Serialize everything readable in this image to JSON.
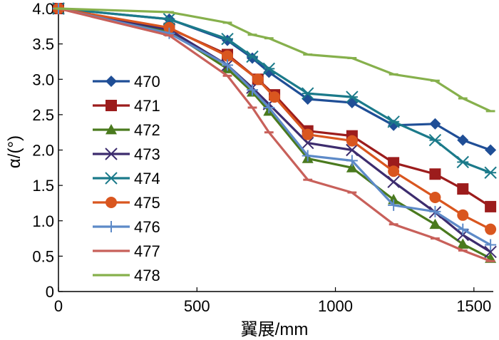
{
  "chart_data": {
    "type": "line",
    "title": "",
    "xlabel": "翼展/mm",
    "ylabel": "α/(°)",
    "xlim": [
      0,
      1570
    ],
    "ylim": [
      0,
      4.0
    ],
    "xticks": [
      0,
      500,
      1000,
      1500
    ],
    "yticks": [
      0,
      0.5,
      1.0,
      1.5,
      2.0,
      2.5,
      3.0,
      3.5,
      4.0
    ],
    "ytick_labels": [
      "0",
      "0.5",
      "1.0",
      "1.5",
      "2.0",
      "2.5",
      "3.0",
      "3.5",
      "4.0"
    ],
    "legend_position": "middle-left",
    "series": [
      {
        "name": "470",
        "color": "#1f4e96",
        "marker": "diamond",
        "x": [
          0,
          400,
          610,
          700,
          760,
          900,
          1060,
          1210,
          1360,
          1460,
          1560
        ],
        "y": [
          4.0,
          3.85,
          3.55,
          3.3,
          3.1,
          2.72,
          2.67,
          2.35,
          2.37,
          2.14,
          2.0
        ]
      },
      {
        "name": "471",
        "color": "#9c1c1c",
        "marker": "square",
        "x": [
          0,
          400,
          610,
          720,
          780,
          900,
          1060,
          1210,
          1360,
          1460,
          1560
        ],
        "y": [
          4.0,
          3.72,
          3.35,
          3.0,
          2.78,
          2.27,
          2.2,
          1.82,
          1.66,
          1.45,
          1.2
        ]
      },
      {
        "name": "472",
        "color": "#4a7a1e",
        "marker": "triangle",
        "x": [
          0,
          400,
          610,
          700,
          760,
          900,
          1060,
          1210,
          1360,
          1460,
          1560
        ],
        "y": [
          4.0,
          3.68,
          3.15,
          2.82,
          2.55,
          1.88,
          1.75,
          1.3,
          0.95,
          0.67,
          0.47
        ]
      },
      {
        "name": "473",
        "color": "#3d2c6e",
        "marker": "x",
        "x": [
          0,
          400,
          610,
          700,
          760,
          900,
          1060,
          1210,
          1360,
          1460,
          1560
        ],
        "y": [
          4.0,
          3.7,
          3.2,
          2.88,
          2.65,
          2.1,
          2.0,
          1.55,
          1.12,
          0.8,
          0.56
        ]
      },
      {
        "name": "474",
        "color": "#1b7a8a",
        "marker": "asterisk",
        "x": [
          0,
          400,
          610,
          700,
          760,
          900,
          1060,
          1210,
          1360,
          1460,
          1560
        ],
        "y": [
          4.0,
          3.85,
          3.57,
          3.32,
          3.15,
          2.8,
          2.75,
          2.4,
          2.14,
          1.83,
          1.68
        ]
      },
      {
        "name": "475",
        "color": "#d9561f",
        "marker": "circle",
        "x": [
          0,
          400,
          610,
          720,
          780,
          900,
          1060,
          1210,
          1360,
          1460,
          1560
        ],
        "y": [
          4.0,
          3.73,
          3.33,
          3.0,
          2.75,
          2.22,
          2.13,
          1.7,
          1.33,
          1.08,
          0.88
        ]
      },
      {
        "name": "476",
        "color": "#5d8ac8",
        "marker": "plus",
        "x": [
          0,
          400,
          610,
          700,
          760,
          900,
          1060,
          1210,
          1360,
          1460,
          1560
        ],
        "y": [
          4.0,
          3.65,
          3.2,
          2.85,
          2.6,
          1.92,
          1.85,
          1.22,
          1.13,
          0.88,
          0.66
        ]
      },
      {
        "name": "477",
        "color": "#c8605a",
        "marker": "dash",
        "x": [
          0,
          400,
          610,
          700,
          760,
          900,
          1060,
          1210,
          1360,
          1460,
          1560
        ],
        "y": [
          4.0,
          3.62,
          3.05,
          2.6,
          2.25,
          1.58,
          1.4,
          0.95,
          0.75,
          0.58,
          0.43
        ]
      },
      {
        "name": "478",
        "color": "#86b04c",
        "marker": "dash",
        "x": [
          0,
          400,
          610,
          700,
          760,
          900,
          1060,
          1210,
          1360,
          1460,
          1560
        ],
        "y": [
          4.0,
          3.95,
          3.8,
          3.63,
          3.58,
          3.35,
          3.3,
          3.07,
          2.98,
          2.73,
          2.55
        ]
      }
    ]
  }
}
